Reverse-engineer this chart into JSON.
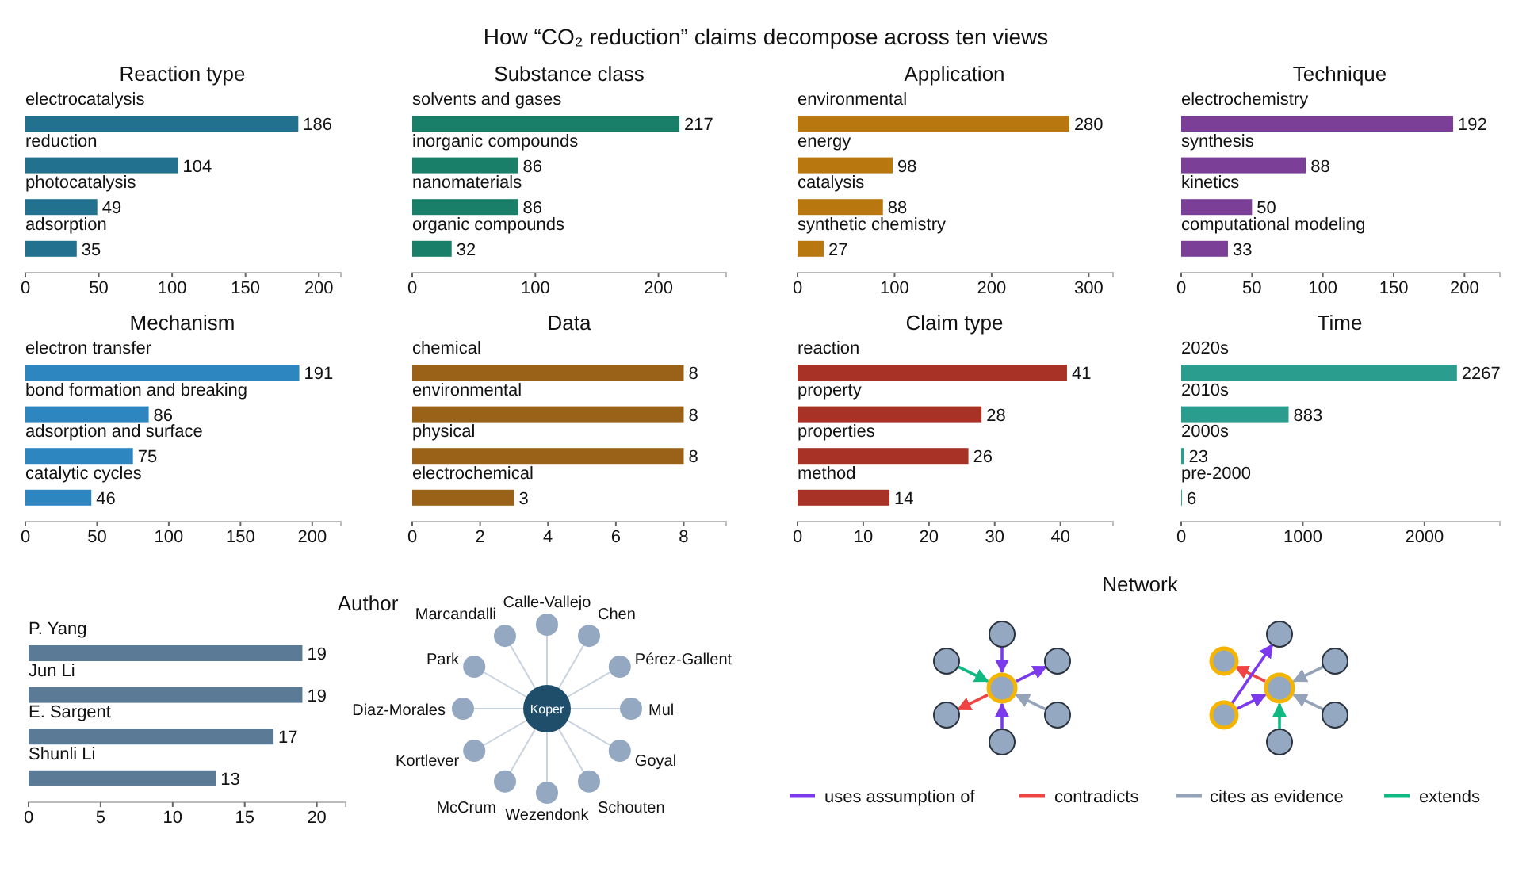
{
  "chart_data": [
    {
      "type": "other",
      "title": "How “CO₂ reduction” claims decompose across ten views"
    },
    {
      "type": "bar",
      "orientation": "horizontal",
      "title": "Reaction type",
      "categories": [
        "electrocatalysis",
        "reduction",
        "photocatalysis",
        "adsorption"
      ],
      "values": [
        186,
        104,
        49,
        35
      ],
      "color": "#21718f",
      "xlim": [
        0,
        215
      ],
      "xticks": [
        0,
        50,
        100,
        150,
        200
      ],
      "data_labels": true
    },
    {
      "type": "bar",
      "orientation": "horizontal",
      "title": "Substance class",
      "categories": [
        "solvents and gases",
        "inorganic compounds",
        "nanomaterials",
        "organic compounds"
      ],
      "values": [
        217,
        86,
        86,
        32
      ],
      "color": "#1a7f68",
      "xlim": [
        0,
        255
      ],
      "xticks": [
        0,
        100,
        200
      ],
      "data_labels": true
    },
    {
      "type": "bar",
      "orientation": "horizontal",
      "title": "Application",
      "categories": [
        "environmental",
        "energy",
        "catalysis",
        "synthetic chemistry"
      ],
      "values": [
        280,
        98,
        88,
        27
      ],
      "color": "#b8780f",
      "xlim": [
        0,
        325
      ],
      "xticks": [
        0,
        100,
        200,
        300
      ],
      "data_labels": true
    },
    {
      "type": "bar",
      "orientation": "horizontal",
      "title": "Technique",
      "categories": [
        "electrochemistry",
        "synthesis",
        "kinetics",
        "computational modeling"
      ],
      "values": [
        192,
        88,
        50,
        33
      ],
      "color": "#7b3f98",
      "xlim": [
        0,
        225
      ],
      "xticks": [
        0,
        50,
        100,
        150,
        200
      ],
      "data_labels": true
    },
    {
      "type": "bar",
      "orientation": "horizontal",
      "title": "Mechanism",
      "categories": [
        "electron transfer",
        "bond formation and breaking",
        "adsorption and surface",
        "catalytic cycles"
      ],
      "values": [
        191,
        86,
        75,
        46
      ],
      "color": "#2e86c1",
      "xlim": [
        0,
        220
      ],
      "xticks": [
        0,
        50,
        100,
        150,
        200
      ],
      "data_labels": true
    },
    {
      "type": "bar",
      "orientation": "horizontal",
      "title": "Data",
      "categories": [
        "chemical",
        "environmental",
        "physical",
        "electrochemical"
      ],
      "values": [
        8,
        8,
        8,
        3
      ],
      "color": "#9a6218",
      "xlim": [
        0,
        9.25
      ],
      "xticks": [
        0,
        2,
        4,
        6,
        8
      ],
      "data_labels": true
    },
    {
      "type": "bar",
      "orientation": "horizontal",
      "title": "Claim type",
      "categories": [
        "reaction",
        "property",
        "properties",
        "method"
      ],
      "values": [
        41,
        28,
        26,
        14
      ],
      "color": "#a93226",
      "xlim": [
        0,
        48
      ],
      "xticks": [
        0,
        10,
        20,
        30,
        40
      ],
      "data_labels": true
    },
    {
      "type": "bar",
      "orientation": "horizontal",
      "title": "Time",
      "categories": [
        "2020s",
        "2010s",
        "2000s",
        "pre-2000"
      ],
      "values": [
        2267,
        883,
        23,
        6
      ],
      "color": "#2a9d8f",
      "xlim": [
        0,
        2620
      ],
      "xticks": [
        0,
        1000,
        2000
      ],
      "data_labels": true
    },
    {
      "type": "bar",
      "orientation": "horizontal",
      "title": "Author",
      "categories": [
        "P. Yang",
        "Jun Li",
        "E. Sargent",
        "Shunli Li"
      ],
      "values": [
        19,
        19,
        17,
        13
      ],
      "color": "#5b7a96",
      "xlim": [
        0,
        22
      ],
      "xticks": [
        0,
        5,
        10,
        15,
        20
      ],
      "data_labels": true
    },
    {
      "type": "other",
      "annotations": [
        "Koper",
        "Calle-Vallejo",
        "Chen",
        "Pérez-Gallent",
        "Mul",
        "Goyal",
        "Schouten",
        "Wezendonk",
        "McCrum",
        "Kortlever",
        "Diaz-Morales",
        "Park",
        "Marcandalli"
      ]
    },
    {
      "type": "other",
      "title": "Network",
      "annotations": [
        "uses assumption of",
        "contradicts",
        "cites as evidence",
        "extends"
      ]
    }
  ]
}
